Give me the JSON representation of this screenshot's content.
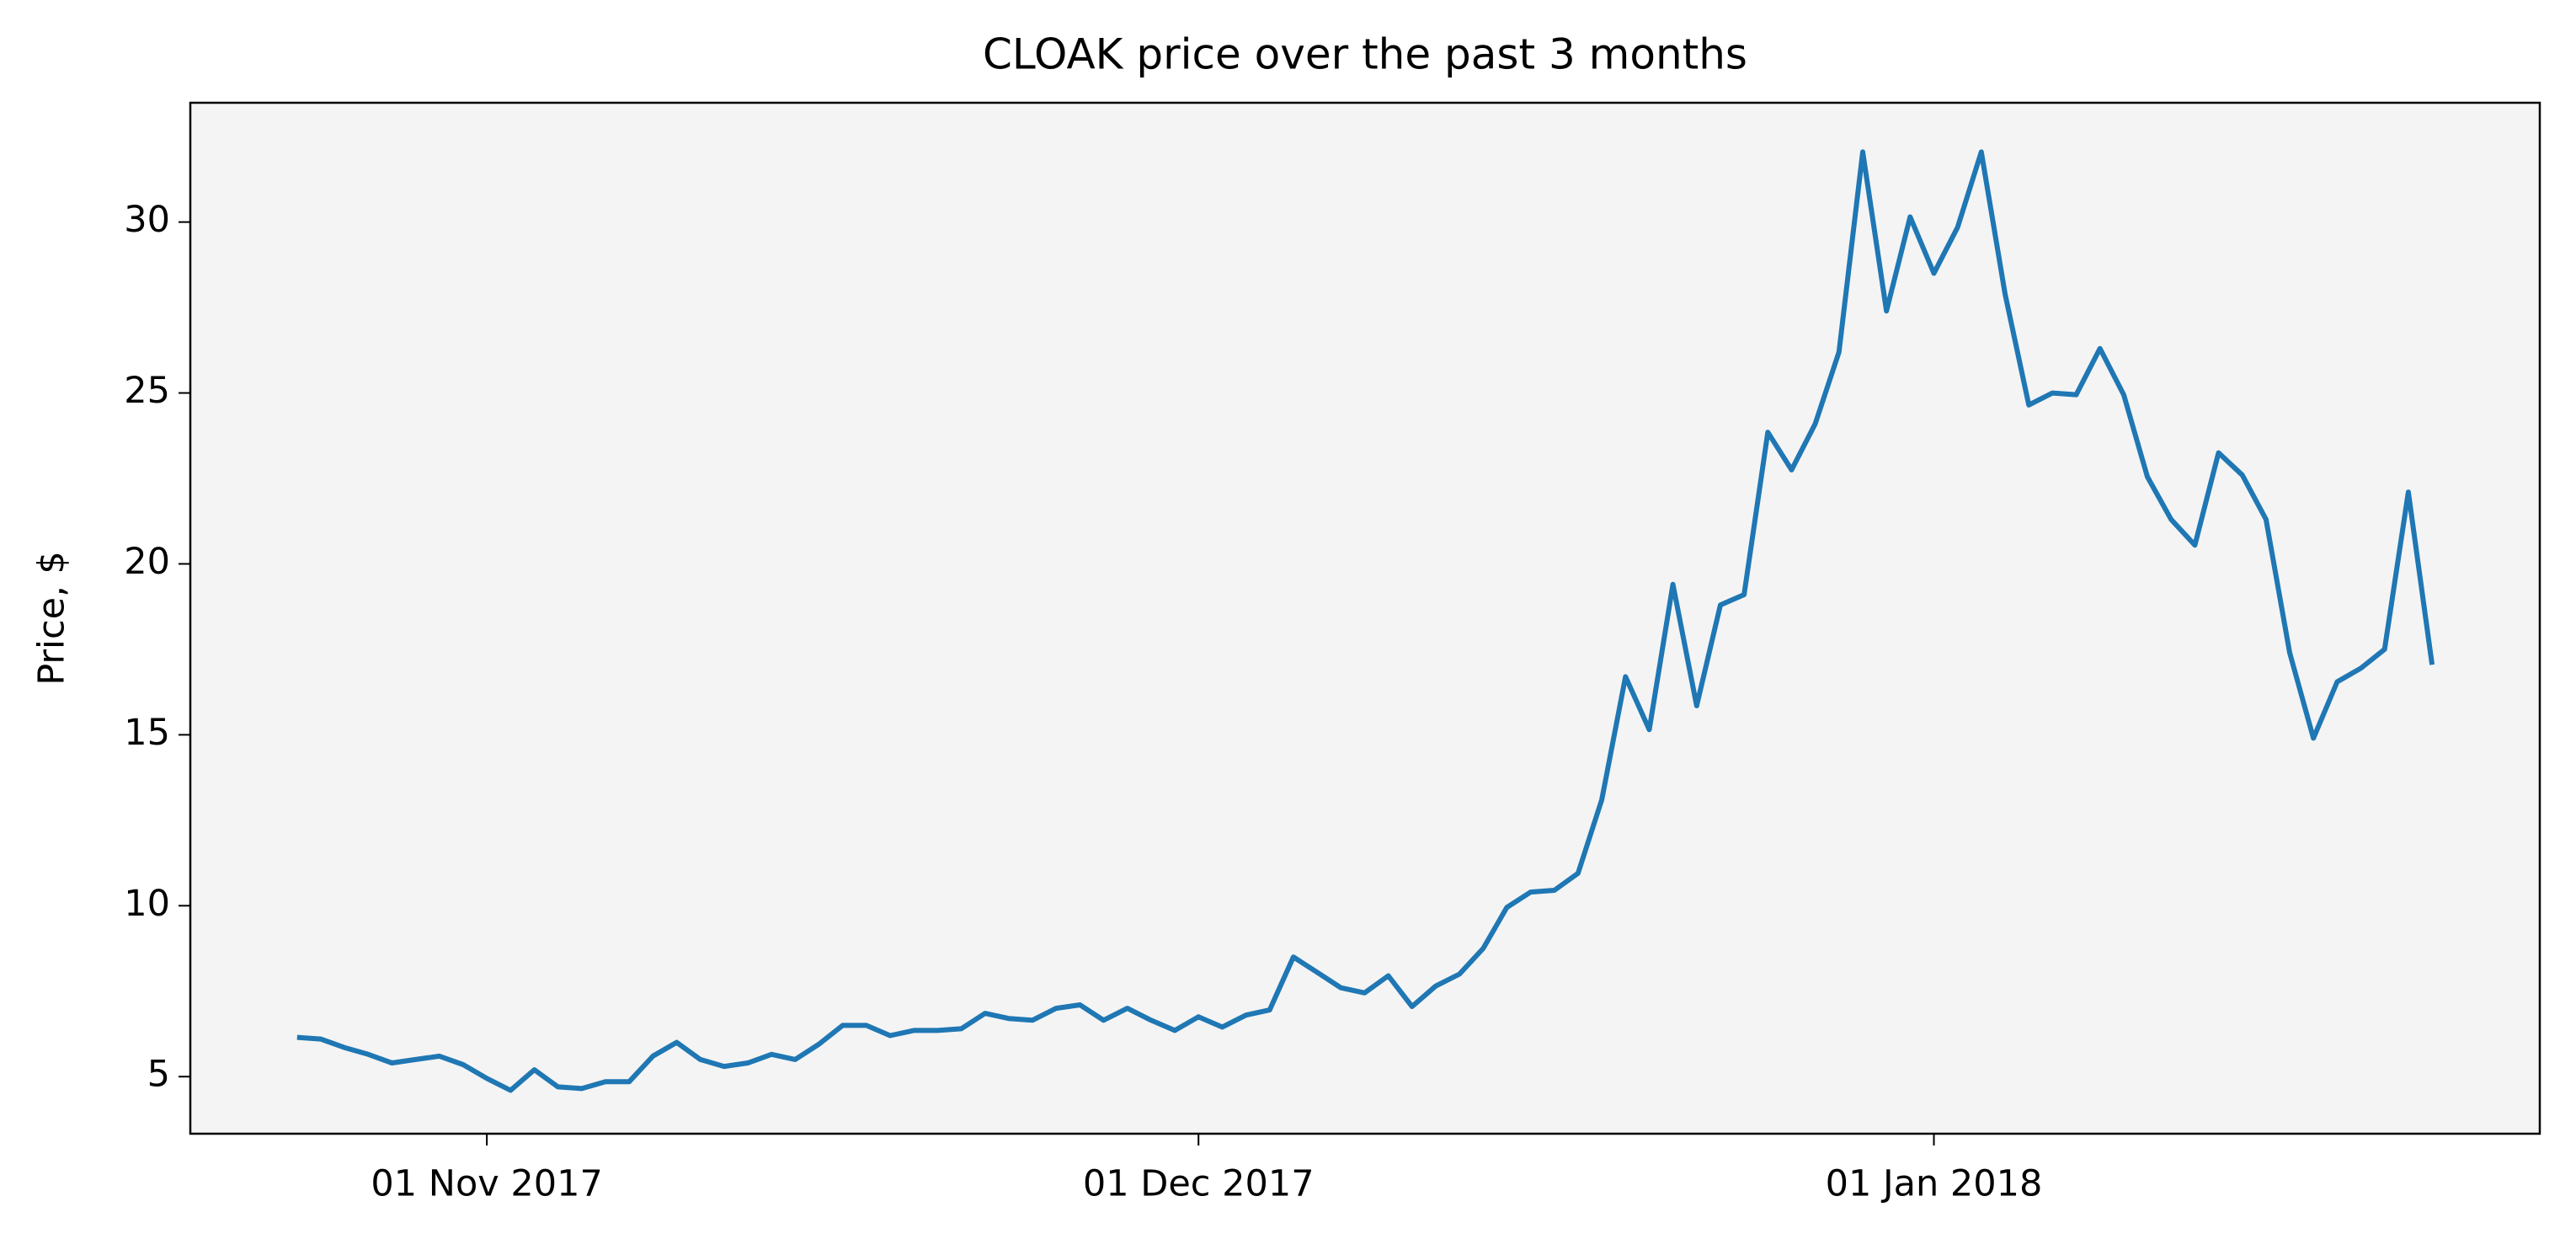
{
  "chart_data": {
    "type": "line",
    "title": "CLOAK price over the past 3 months",
    "y_label": "Price, $",
    "x": [
      "2017-10-24",
      "2017-10-25",
      "2017-10-26",
      "2017-10-27",
      "2017-10-28",
      "2017-10-29",
      "2017-10-30",
      "2017-10-31",
      "2017-11-01",
      "2017-11-02",
      "2017-11-03",
      "2017-11-04",
      "2017-11-05",
      "2017-11-06",
      "2017-11-07",
      "2017-11-08",
      "2017-11-09",
      "2017-11-10",
      "2017-11-11",
      "2017-11-12",
      "2017-11-13",
      "2017-11-14",
      "2017-11-15",
      "2017-11-16",
      "2017-11-17",
      "2017-11-18",
      "2017-11-19",
      "2017-11-20",
      "2017-11-21",
      "2017-11-22",
      "2017-11-23",
      "2017-11-24",
      "2017-11-25",
      "2017-11-26",
      "2017-11-27",
      "2017-11-28",
      "2017-11-29",
      "2017-11-30",
      "2017-12-01",
      "2017-12-02",
      "2017-12-03",
      "2017-12-04",
      "2017-12-05",
      "2017-12-06",
      "2017-12-07",
      "2017-12-08",
      "2017-12-09",
      "2017-12-10",
      "2017-12-11",
      "2017-12-12",
      "2017-12-13",
      "2017-12-14",
      "2017-12-15",
      "2017-12-16",
      "2017-12-17",
      "2017-12-18",
      "2017-12-19",
      "2017-12-20",
      "2017-12-21",
      "2017-12-22",
      "2017-12-23",
      "2017-12-24",
      "2017-12-25",
      "2017-12-26",
      "2017-12-27",
      "2017-12-28",
      "2017-12-29",
      "2017-12-30",
      "2017-12-31",
      "2018-01-01",
      "2018-01-02",
      "2018-01-03",
      "2018-01-04",
      "2018-01-05",
      "2018-01-06",
      "2018-01-07",
      "2018-01-08",
      "2018-01-09",
      "2018-01-10",
      "2018-01-11",
      "2018-01-12",
      "2018-01-13",
      "2018-01-14",
      "2018-01-15",
      "2018-01-16",
      "2018-01-17",
      "2018-01-18",
      "2018-01-19",
      "2018-01-20",
      "2018-01-21",
      "2018-01-22"
    ],
    "series": [
      {
        "name": "CLOAK",
        "color": "#1f77b4",
        "values": [
          6.15,
          6.1,
          5.85,
          5.65,
          5.4,
          5.5,
          5.6,
          5.35,
          4.95,
          4.6,
          5.2,
          4.7,
          4.65,
          4.85,
          4.85,
          5.6,
          6.0,
          5.5,
          5.3,
          5.4,
          5.65,
          5.5,
          5.95,
          6.5,
          6.5,
          6.2,
          6.35,
          6.35,
          6.4,
          6.85,
          6.7,
          6.65,
          7.0,
          7.1,
          6.65,
          7.0,
          6.65,
          6.35,
          6.75,
          6.45,
          6.8,
          6.95,
          8.5,
          8.05,
          7.6,
          7.45,
          7.95,
          7.05,
          7.65,
          8.0,
          8.75,
          9.95,
          10.4,
          10.45,
          10.95,
          13.1,
          16.7,
          15.15,
          19.4,
          15.85,
          18.8,
          19.1,
          23.85,
          22.75,
          24.1,
          26.2,
          32.05,
          27.4,
          30.15,
          28.5,
          29.85,
          32.05,
          27.9,
          24.65,
          25.0,
          24.95,
          26.3,
          24.95,
          22.55,
          21.3,
          20.55,
          23.25,
          22.6,
          21.3,
          17.4,
          14.9,
          16.55,
          16.95,
          17.5,
          22.1,
          17.05
        ]
      }
    ],
    "xlim": [
      "2017-10-19T12:00",
      "2018-01-26T13:00"
    ],
    "xticks": [
      {
        "value": "2017-11-01",
        "label": "01 Nov 2017"
      },
      {
        "value": "2017-12-01",
        "label": "01 Dec 2017"
      },
      {
        "value": "2018-01-01",
        "label": "01 Jan 2018"
      }
    ],
    "ylim": [
      3.33,
      33.49
    ],
    "yticks": [
      5,
      10,
      15,
      20,
      25,
      30
    ],
    "background": "#f4f4f4"
  }
}
